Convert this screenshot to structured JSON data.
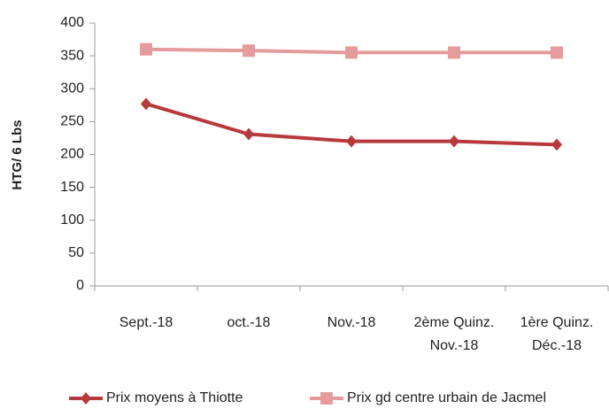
{
  "chart_data": {
    "type": "line",
    "y_label": "HTG/ 6 Lbs",
    "categories": [
      "Sept.-18",
      "oct.-18",
      "Nov.-18",
      "2ème Quinz. Nov.-18",
      "1ère Quinz. Déc.-18"
    ],
    "series": [
      {
        "name": "Prix moyens à Thiotte",
        "color": "#b8393b",
        "marker": "diamond",
        "values": [
          277,
          231,
          220,
          220,
          215
        ]
      },
      {
        "name": "Prix gd centre urbain de Jacmel",
        "color": "#e59b9b",
        "marker": "square",
        "values": [
          360,
          358,
          355,
          355,
          355
        ]
      }
    ],
    "ylim": [
      0,
      400
    ],
    "yticks": [
      0,
      50,
      100,
      150,
      200,
      250,
      300,
      350,
      400
    ],
    "grid": false,
    "legend": "bottom"
  }
}
